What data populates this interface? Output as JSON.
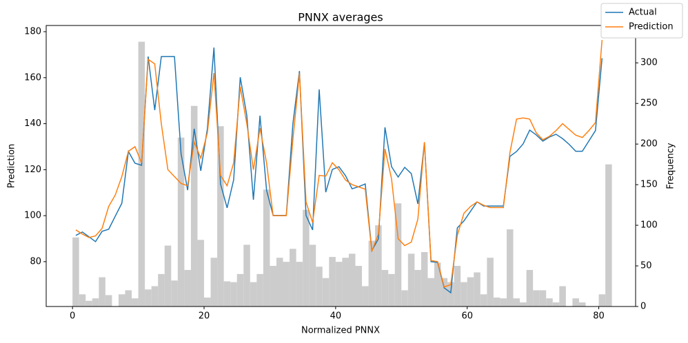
{
  "chart_data": {
    "type": "combo",
    "title": "PNNX averages",
    "x_label": "Normalized PNNX",
    "y_label": "Prediction",
    "y2_label": "Frequency",
    "xlim": [
      -4.0,
      85.6
    ],
    "xticks": [
      0,
      20,
      40,
      60,
      80
    ],
    "ylim": [
      60.5,
      182.7
    ],
    "yticks": [
      80,
      100,
      120,
      140,
      160,
      180
    ],
    "y2lim": [
      0,
      346
    ],
    "y2ticks": [
      0,
      50,
      100,
      150,
      200,
      250,
      300
    ],
    "legend": "upper right",
    "histogram": {
      "axis": "y2",
      "color": "#cccccc",
      "bins": [
        0,
        1,
        2,
        3,
        4,
        5,
        6,
        7,
        8,
        9,
        10,
        11,
        12,
        13,
        14,
        15,
        16,
        17,
        18,
        19,
        20,
        21,
        22,
        23,
        24,
        25,
        26,
        27,
        28,
        29,
        30,
        31,
        32,
        33,
        34,
        35,
        36,
        37,
        38,
        39,
        40,
        41,
        42,
        43,
        44,
        45,
        46,
        47,
        48,
        49,
        50,
        51,
        52,
        53,
        54,
        55,
        56,
        57,
        58,
        59,
        60,
        61,
        62,
        63,
        64,
        65,
        66,
        67,
        68,
        69,
        70,
        71,
        72,
        73,
        74,
        75,
        76,
        77,
        78,
        79,
        80,
        81,
        82
      ],
      "counts": [
        85,
        15,
        7,
        10,
        36,
        14,
        0,
        15,
        20,
        10,
        326,
        21,
        25,
        40,
        75,
        32,
        208,
        45,
        247,
        82,
        11,
        60,
        222,
        31,
        30,
        40,
        76,
        30,
        40,
        144,
        50,
        60,
        55,
        71,
        55,
        119,
        76,
        49,
        35,
        61,
        55,
        60,
        65,
        50,
        25,
        81,
        100,
        45,
        40,
        127,
        20,
        65,
        45,
        67,
        35,
        54,
        35,
        30,
        50,
        30,
        36,
        42,
        15,
        60,
        11,
        10,
        95,
        10,
        5,
        45,
        20,
        20,
        10,
        5,
        25,
        0,
        10,
        5,
        0,
        0,
        15,
        175
      ]
    },
    "x": [
      0.5,
      1.5,
      2.5,
      3.5,
      4.5,
      5.5,
      6.5,
      7.5,
      8.5,
      9.5,
      10.5,
      11.5,
      12.5,
      13.5,
      14.5,
      15.5,
      16.5,
      17.5,
      18.5,
      19.5,
      20.5,
      21.5,
      22.5,
      23.5,
      24.5,
      25.5,
      26.5,
      27.5,
      28.5,
      29.5,
      30.5,
      31.5,
      32.5,
      33.5,
      34.5,
      35.5,
      36.5,
      37.5,
      38.5,
      39.5,
      40.5,
      41.5,
      42.5,
      43.5,
      44.5,
      45.5,
      46.5,
      47.5,
      48.5,
      49.5,
      50.5,
      51.5,
      52.5,
      53.5,
      54.5,
      55.5,
      56.5,
      57.5,
      58.5,
      59.5,
      60.5,
      61.5,
      62.5,
      63.5,
      64.5,
      65.5,
      66.5,
      67.5,
      68.5,
      69.5,
      70.5,
      71.5,
      72.5,
      73.5,
      74.5,
      75.5,
      76.5,
      77.5,
      78.5,
      79.5,
      80.5
    ],
    "series": [
      {
        "name": "Actual",
        "color": "#1f77b4",
        "values": [
          91.4,
          92.9,
          90.8,
          88.7,
          93.2,
          94.1,
          99.8,
          105.4,
          127.9,
          122.8,
          121.9,
          169.2,
          145.9,
          169.2,
          169.2,
          169.2,
          127.0,
          111.1,
          137.8,
          119.5,
          137.8,
          173.1,
          113.8,
          103.4,
          115.6,
          160.2,
          143.5,
          106.9,
          143.5,
          111.1,
          100.1,
          100.1,
          100.1,
          139.9,
          162.9,
          100.1,
          93.8,
          154.9,
          110.2,
          120.1,
          121.3,
          117.4,
          111.7,
          112.6,
          113.8,
          84.8,
          89.9,
          138.4,
          121.3,
          116.8,
          121.0,
          118.3,
          105.1,
          131.8,
          80.0,
          79.7,
          68.6,
          66.5,
          94.7,
          97.7,
          101.9,
          106.0,
          104.2,
          104.2,
          104.2,
          104.2,
          125.8,
          127.9,
          131.2,
          137.2,
          135.1,
          132.4,
          134.2,
          135.4,
          133.5,
          131.0,
          128.0,
          128.0,
          132.5,
          137.0,
          168.5
        ]
      },
      {
        "name": "Prediction",
        "color": "#ff7f0e",
        "values": [
          93.8,
          92.0,
          90.5,
          91.2,
          94.5,
          104.0,
          109.0,
          117.0,
          128.0,
          130.0,
          123.0,
          168.0,
          166.0,
          140.0,
          120.0,
          117.0,
          114.0,
          113.0,
          132.0,
          125.0,
          136.0,
          162.0,
          117.5,
          113.0,
          123.0,
          156.0,
          140.0,
          120.0,
          138.0,
          123.0,
          100.0,
          100.0,
          100.0,
          133.0,
          162.0,
          106.0,
          97.0,
          117.5,
          117.2,
          123.0,
          120.0,
          115.5,
          113.5,
          112.5,
          111.5,
          84.5,
          92.0,
          129.0,
          116.0,
          90.0,
          87.0,
          88.5,
          98.5,
          132.0,
          80.5,
          80.0,
          69.0,
          70.0,
          91.5,
          101.0,
          104.0,
          106.0,
          104.5,
          103.5,
          103.5,
          103.5,
          127.5,
          142.0,
          142.5,
          142.0,
          136.0,
          133.0,
          134.5,
          137.0,
          140.0,
          137.5,
          135.0,
          134.0,
          137.0,
          140.5,
          176.4
        ]
      }
    ]
  }
}
